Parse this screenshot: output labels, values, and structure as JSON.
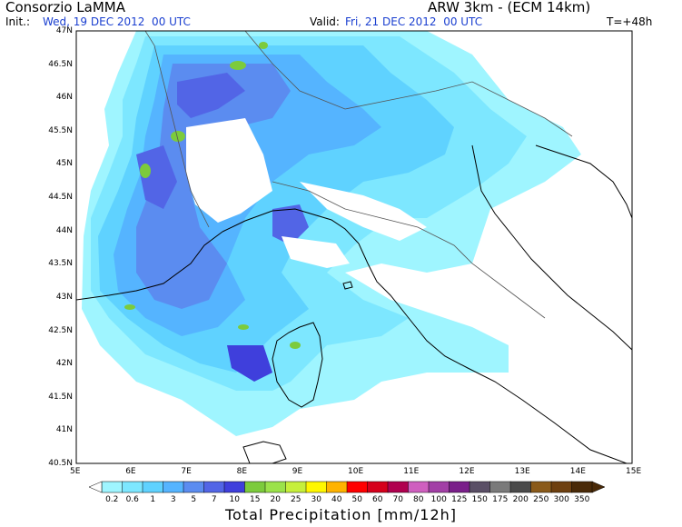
{
  "header": {
    "org": "Consorzio LaMMA",
    "model": "ARW 3km - (ECM 14km)",
    "init_label": "Init.:",
    "init_value": "Wed, 19 DEC 2012  00 UTC",
    "valid_label": "Valid:",
    "valid_value": "Fri, 21 DEC 2012  00 UTC",
    "lead": "T=+48h"
  },
  "axes": {
    "lat_labels": [
      "47N",
      "46.5N",
      "46N",
      "45.5N",
      "45N",
      "44.5N",
      "44N",
      "43.5N",
      "43N",
      "42.5N",
      "42N",
      "41.5N",
      "41N",
      "40.5N"
    ],
    "lon_labels": [
      "5E",
      "6E",
      "7E",
      "8E",
      "9E",
      "10E",
      "11E",
      "12E",
      "13E",
      "14E",
      "15E"
    ]
  },
  "legend": {
    "title": "Total Precipitation [mm/12h]",
    "levels": [
      "0.2",
      "0.6",
      "1",
      "3",
      "5",
      "7",
      "10",
      "15",
      "20",
      "25",
      "30",
      "40",
      "50",
      "60",
      "70",
      "80",
      "100",
      "125",
      "150",
      "175",
      "200",
      "250",
      "300",
      "350"
    ],
    "colors": [
      "#9ff5ff",
      "#7de7ff",
      "#5fd2ff",
      "#55b4ff",
      "#5b8cf0",
      "#5265e6",
      "#3f3fdc",
      "#7ccb3c",
      "#9be24a",
      "#c6ef3b",
      "#fff700",
      "#ffb300",
      "#ff0000",
      "#d6001b",
      "#b0004f",
      "#cf5fbf",
      "#a23fa6",
      "#7a1f8a",
      "#5a4f66",
      "#7a7a7a",
      "#4a4a4a",
      "#8a5a1a",
      "#6e4010",
      "#4a2a08"
    ]
  },
  "precip_colors": {
    "very_light": "#9ff5ff",
    "light": "#7de7ff",
    "medium": "#5fd2ff",
    "moderate": "#55b4ff",
    "heavy": "#5b8cf0",
    "very_heavy": "#5265e6",
    "extreme": "#3f3fdc",
    "green": "#7ccb3c"
  }
}
